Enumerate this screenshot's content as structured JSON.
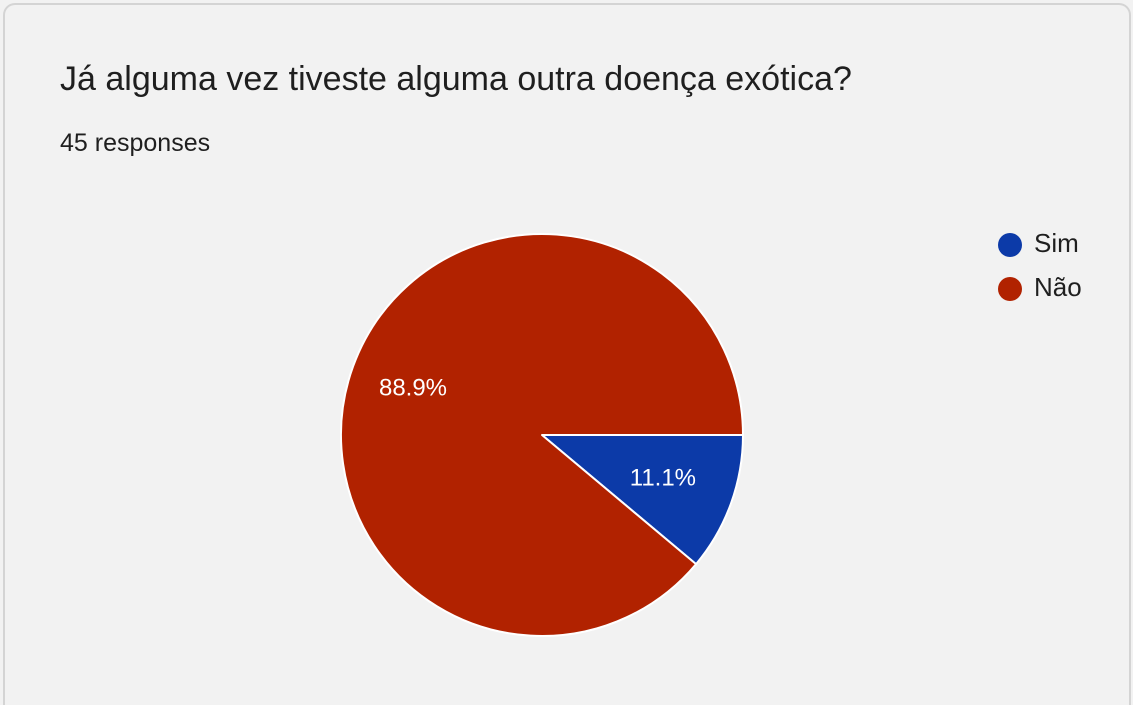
{
  "card": {
    "title": "Já alguma vez tiveste alguma outra doença exótica?",
    "responses": "45 responses"
  },
  "chart_data": {
    "type": "pie",
    "title": "Já alguma vez tiveste alguma outra doença exótica?",
    "categories": [
      "Sim",
      "Não"
    ],
    "values": [
      11.1,
      88.9
    ],
    "labels": [
      "11.1%",
      "88.9%"
    ],
    "colors": [
      "#0c3aa8",
      "#b12200"
    ],
    "legend_position": "right",
    "start_angle_deg": 0,
    "direction": "clockwise"
  }
}
